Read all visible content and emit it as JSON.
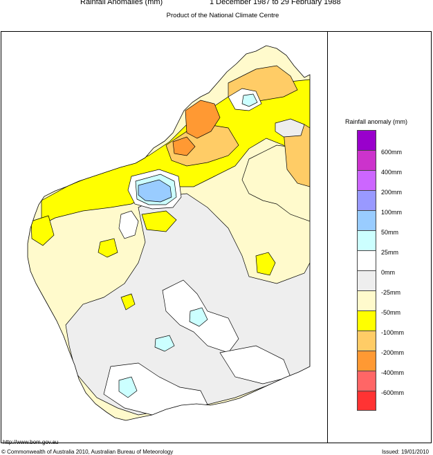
{
  "header": {
    "title": "Rainfall Anomalies (mm)",
    "period": "1 December 1987 to 29 February 1988",
    "subtitle": "Product of the National Climate Centre"
  },
  "map": {
    "region": "Western Australia",
    "zones": [
      {
        "category": "0 to -25mm",
        "color": "#eeeeee"
      },
      {
        "category": "-25 to -50mm",
        "color": "#fffacc"
      },
      {
        "category": "-50 to -100mm",
        "color": "#ffff00"
      },
      {
        "category": "-100 to -200mm",
        "color": "#ffcc66"
      },
      {
        "category": "-200 to -400mm",
        "color": "#ff9933"
      },
      {
        "category": "0 to 25mm",
        "color": "#ffffff"
      },
      {
        "category": "25 to 50mm",
        "color": "#ccffff"
      },
      {
        "category": "50 to 100mm",
        "color": "#99ccff"
      }
    ]
  },
  "legend": {
    "title": "Rainfall anomaly (mm)",
    "swatches": [
      {
        "color": "#9900cc"
      },
      {
        "color": "#cc33cc"
      },
      {
        "color": "#cc66ff"
      },
      {
        "color": "#9999ff"
      },
      {
        "color": "#99ccff"
      },
      {
        "color": "#ccffff"
      },
      {
        "color": "#ffffff"
      },
      {
        "color": "#eeeeee"
      },
      {
        "color": "#fffacc"
      },
      {
        "color": "#ffff00"
      },
      {
        "color": "#ffcc66"
      },
      {
        "color": "#ff9933"
      },
      {
        "color": "#ff6666"
      },
      {
        "color": "#ff3333"
      }
    ],
    "labels": [
      "600mm",
      "400mm",
      "200mm",
      "100mm",
      "50mm",
      "25mm",
      "0mm",
      "-25mm",
      "-50mm",
      "-100mm",
      "-200mm",
      "-400mm",
      "-600mm"
    ]
  },
  "footer": {
    "url": "http://www.bom.gov.au",
    "copyright": "© Commonwealth of Australia 2010, Australian Bureau of Meteorology",
    "issued": "Issued: 19/01/2010"
  }
}
